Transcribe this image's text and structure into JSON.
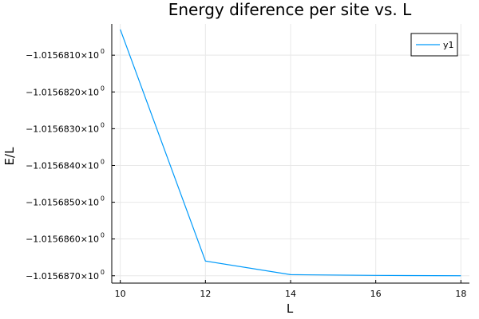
{
  "chart_data": {
    "type": "line",
    "title": "Energy diference per site vs. L",
    "xlabel": "L",
    "ylabel": "E/L",
    "x": [
      10,
      12,
      14,
      16,
      18
    ],
    "series": [
      {
        "name": "y1",
        "values": [
          -1.0156803,
          -1.0156866,
          -1.01568697,
          -1.01568699,
          -1.015687
        ]
      }
    ],
    "xlim": [
      9.8,
      18.2
    ],
    "ylim": [
      -1.0156872,
      -1.01568015
    ],
    "xticks": [
      10,
      12,
      14,
      16,
      18
    ],
    "xtick_labels": [
      "10",
      "12",
      "14",
      "16",
      "18"
    ],
    "yticks": [
      -1.015681,
      -1.015682,
      -1.015683,
      -1.015684,
      -1.015685,
      -1.015686,
      -1.015687
    ],
    "ytick_labels": [
      "−1.0156810×10",
      "−1.0156820×10",
      "−1.0156830×10",
      "−1.0156840×10",
      "−1.0156850×10",
      "−1.0156860×10",
      "−1.0156870×10"
    ],
    "ytick_exponent": "0",
    "grid": true,
    "legend_position": "top-right",
    "colors": {
      "series": "#009AFA",
      "grid": "#E8E8E8",
      "axis": "#000000"
    }
  }
}
